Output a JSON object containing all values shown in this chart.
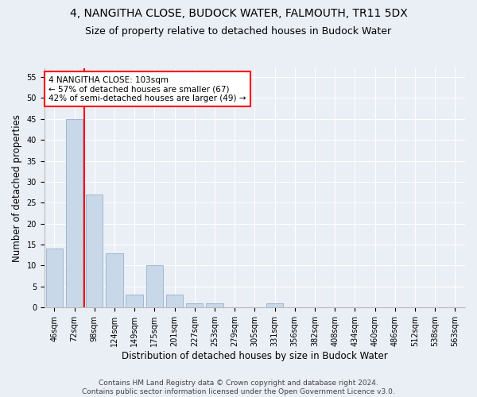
{
  "title": "4, NANGITHA CLOSE, BUDOCK WATER, FALMOUTH, TR11 5DX",
  "subtitle": "Size of property relative to detached houses in Budock Water",
  "xlabel": "Distribution of detached houses by size in Budock Water",
  "ylabel": "Number of detached properties",
  "footer_line1": "Contains HM Land Registry data © Crown copyright and database right 2024.",
  "footer_line2": "Contains public sector information licensed under the Open Government Licence v3.0.",
  "bar_labels": [
    "46sqm",
    "72sqm",
    "98sqm",
    "124sqm",
    "149sqm",
    "175sqm",
    "201sqm",
    "227sqm",
    "253sqm",
    "279sqm",
    "305sqm",
    "331sqm",
    "356sqm",
    "382sqm",
    "408sqm",
    "434sqm",
    "460sqm",
    "486sqm",
    "512sqm",
    "538sqm",
    "563sqm"
  ],
  "bar_values": [
    14,
    45,
    27,
    13,
    3,
    10,
    3,
    1,
    1,
    0,
    0,
    1,
    0,
    0,
    0,
    0,
    0,
    0,
    0,
    0,
    0
  ],
  "bar_color": "#c8d8e8",
  "bar_edge_color": "#a0b8d0",
  "property_line_label": "4 NANGITHA CLOSE: 103sqm",
  "annotation_line1": "← 57% of detached houses are smaller (67)",
  "annotation_line2": "42% of semi-detached houses are larger (49) →",
  "annotation_box_color": "white",
  "annotation_box_edge_color": "red",
  "vline_color": "red",
  "vline_x": 1.5,
  "ylim": [
    0,
    57
  ],
  "yticks": [
    0,
    5,
    10,
    15,
    20,
    25,
    30,
    35,
    40,
    45,
    50,
    55
  ],
  "background_color": "#eaeef5",
  "plot_background_color": "#eaeef5",
  "title_fontsize": 10,
  "subtitle_fontsize": 9,
  "xlabel_fontsize": 8.5,
  "ylabel_fontsize": 8.5,
  "tick_fontsize": 7,
  "footer_fontsize": 6.5,
  "annot_fontsize": 7.5
}
